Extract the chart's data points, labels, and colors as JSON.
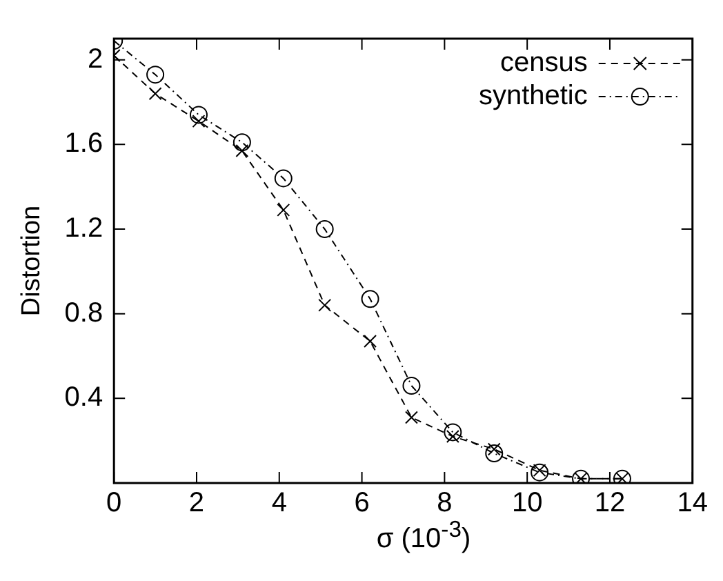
{
  "chart_data": {
    "type": "line",
    "xlabel": "σ (10$^{-3}$)",
    "ylabel": "Distortion",
    "xlim": [
      0,
      14
    ],
    "xticks": [
      0,
      2,
      4,
      6,
      8,
      10,
      12,
      14
    ],
    "ylim": [
      0,
      2.1
    ],
    "yticks": [
      0.4,
      0.8,
      1.2,
      1.6,
      2
    ],
    "grid": false,
    "legend": "top right",
    "series": [
      {
        "name": "census",
        "color": "#000000",
        "marker": "cross",
        "line_style": "dashed",
        "x": [
          0,
          1,
          2.05,
          3.1,
          4.1,
          5.1,
          6.2,
          7.2,
          8.2,
          9.2,
          10.3,
          11.3,
          12.3
        ],
        "values": [
          2.02,
          1.84,
          1.71,
          1.57,
          1.29,
          0.84,
          0.67,
          0.31,
          0.22,
          0.16,
          0.06,
          0.02,
          0.02
        ]
      },
      {
        "name": "synthetic",
        "color": "#000000",
        "marker": "circle",
        "line_style": "dotted",
        "x": [
          0,
          1,
          2.05,
          3.1,
          4.1,
          5.1,
          6.2,
          7.2,
          8.2,
          9.2,
          10.3,
          11.3,
          12.3
        ],
        "values": [
          2.09,
          1.93,
          1.74,
          1.61,
          1.44,
          1.2,
          0.87,
          0.46,
          0.24,
          0.14,
          0.05,
          0.02,
          0.02
        ]
      }
    ]
  }
}
